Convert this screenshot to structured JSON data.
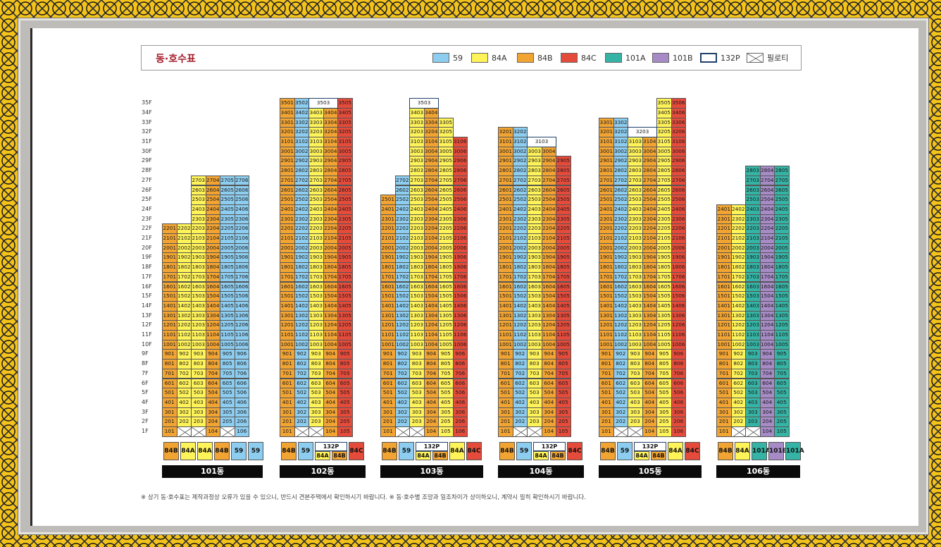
{
  "title": "동·호수표",
  "colors": {
    "59": "#8dcdf0",
    "84A": "#fff35a",
    "84B": "#f2a433",
    "84C": "#e54b3b",
    "101A": "#35b3a4",
    "101B": "#a68bc6",
    "132P": "#ffffff"
  },
  "legend": [
    {
      "type": "59",
      "label": "59"
    },
    {
      "type": "84A",
      "label": "84A"
    },
    {
      "type": "84B",
      "label": "84B"
    },
    {
      "type": "84C",
      "label": "84C"
    },
    {
      "type": "101A",
      "label": "101A"
    },
    {
      "type": "101B",
      "label": "101B"
    },
    {
      "type": "132P",
      "label": "132P"
    },
    {
      "type": "piloti",
      "label": "필로티"
    }
  ],
  "floor_labels": [
    "35F",
    "34F",
    "33F",
    "32F",
    "31F",
    "30F",
    "29F",
    "28F",
    "27F",
    "26F",
    "25F",
    "24F",
    "23F",
    "22F",
    "21F",
    "20F",
    "19F",
    "18F",
    "17F",
    "16F",
    "15F",
    "14F",
    "13F",
    "12F",
    "11F",
    "10F",
    "9F",
    "8F",
    "7F",
    "6F",
    "5F",
    "4F",
    "3F",
    "2F",
    "1F"
  ],
  "buildings": [
    {
      "name": "101동",
      "lines": [
        {
          "n": 1,
          "type": "84B",
          "top": 22,
          "piloti": []
        },
        {
          "n": 2,
          "type": "84A",
          "top": 22,
          "piloti": [
            1
          ]
        },
        {
          "n": 3,
          "type": "84A",
          "top": 27,
          "piloti": [
            1
          ]
        },
        {
          "n": 4,
          "type": "84B",
          "top": 27,
          "piloti": []
        },
        {
          "n": 5,
          "type": "59",
          "top": 27,
          "piloti": [
            1
          ]
        },
        {
          "n": 6,
          "type": "59",
          "top": 27,
          "piloti": []
        }
      ]
    },
    {
      "name": "102동",
      "lines": [
        {
          "n": 1,
          "type": "84B",
          "top": 35,
          "piloti": []
        },
        {
          "n": 2,
          "type": "59",
          "top": 35,
          "piloti": [
            1
          ]
        },
        {
          "n": 3,
          "type": "84A",
          "top": 34,
          "piloti": [
            1
          ]
        },
        {
          "n": 4,
          "type": "84B",
          "top": 34,
          "piloti": []
        },
        {
          "n": 5,
          "type": "84C",
          "top": 35,
          "piloti": []
        }
      ],
      "penthouse": {
        "label": "3503",
        "span": [
          3,
          4
        ]
      },
      "header_132": "132P"
    },
    {
      "name": "103동",
      "lines": [
        {
          "n": 1,
          "type": "84B",
          "top": 25,
          "piloti": []
        },
        {
          "n": 2,
          "type": "59",
          "top": 27,
          "piloti": [
            1
          ]
        },
        {
          "n": 3,
          "type": "84A",
          "top": 34,
          "piloti": [
            1
          ]
        },
        {
          "n": 4,
          "type": "84B",
          "top": 34,
          "piloti": []
        },
        {
          "n": 5,
          "type": "84A",
          "top": 33,
          "piloti": []
        },
        {
          "n": 6,
          "type": "84C",
          "top": 31,
          "piloti": []
        }
      ],
      "penthouse": {
        "label": "3503",
        "span": [
          3,
          4
        ]
      },
      "header_132": "132P"
    },
    {
      "name": "104동",
      "lines": [
        {
          "n": 1,
          "type": "84B",
          "top": 32,
          "piloti": []
        },
        {
          "n": 2,
          "type": "59",
          "top": 32,
          "piloti": [
            1
          ]
        },
        {
          "n": 3,
          "type": "84A",
          "top": 30,
          "piloti": [
            1
          ]
        },
        {
          "n": 4,
          "type": "84B",
          "top": 30,
          "piloti": []
        },
        {
          "n": 5,
          "type": "84C",
          "top": 29,
          "piloti": []
        }
      ],
      "penthouse": {
        "label": "3103",
        "span": [
          3,
          4
        ]
      },
      "header_132": "132P"
    },
    {
      "name": "105동",
      "lines": [
        {
          "n": 1,
          "type": "84B",
          "top": 33,
          "piloti": []
        },
        {
          "n": 2,
          "type": "59",
          "top": 33,
          "piloti": [
            1
          ]
        },
        {
          "n": 3,
          "type": "84A",
          "top": 31,
          "piloti": [
            1
          ]
        },
        {
          "n": 4,
          "type": "84B",
          "top": 31,
          "piloti": []
        },
        {
          "n": 5,
          "type": "84A",
          "top": 35,
          "piloti": []
        },
        {
          "n": 6,
          "type": "84C",
          "top": 35,
          "piloti": []
        }
      ],
      "penthouse": {
        "label": "3203",
        "span": [
          3,
          4
        ]
      },
      "header_132": "132P"
    },
    {
      "name": "106동",
      "lines": [
        {
          "n": 1,
          "type": "84B",
          "top": 24,
          "piloti": []
        },
        {
          "n": 2,
          "type": "84A",
          "top": 24,
          "piloti": [
            1
          ]
        },
        {
          "n": 3,
          "type": "101A",
          "top": 28,
          "piloti": [
            1
          ]
        },
        {
          "n": 4,
          "type": "101B",
          "top": 28,
          "piloti": []
        },
        {
          "n": 5,
          "type": "101A",
          "top": 28,
          "piloti": []
        }
      ]
    }
  ],
  "footnote": "※ 상기 동·호수표는 제작과정상 오류가 있을 수 있으니, 반드시 견본주택에서 확인하시기 바랍니다.  ※ 동·호수별 조망과 일조차이가 상이하오니, 계약시 필히 확인하시기 바랍니다."
}
